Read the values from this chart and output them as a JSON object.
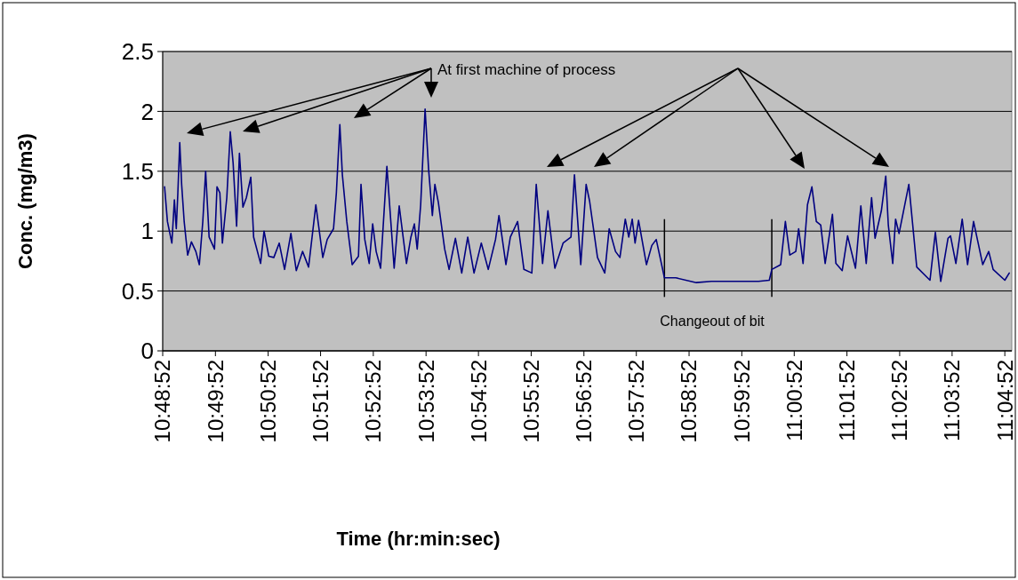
{
  "chart_data": {
    "type": "line",
    "xlabel": "Time (hr:min:sec)",
    "ylabel": "Conc. (mg/m3)",
    "xlim": [
      10.8144,
      11.0833
    ],
    "ylim": [
      0,
      2.5
    ],
    "xticks": [
      {
        "value": 10.8144,
        "label": "10:48:52"
      },
      {
        "value": 10.8311,
        "label": "10:49:52"
      },
      {
        "value": 10.8478,
        "label": "10:50:52"
      },
      {
        "value": 10.8644,
        "label": "10:51:52"
      },
      {
        "value": 10.8811,
        "label": "10:52:52"
      },
      {
        "value": 10.8978,
        "label": "10:53:52"
      },
      {
        "value": 10.9144,
        "label": "10:54:52"
      },
      {
        "value": 10.9311,
        "label": "10:55:52"
      },
      {
        "value": 10.9478,
        "label": "10:56:52"
      },
      {
        "value": 10.9644,
        "label": "10:57:52"
      },
      {
        "value": 10.9811,
        "label": "10:58:52"
      },
      {
        "value": 10.9978,
        "label": "10:59:52"
      },
      {
        "value": 11.0144,
        "label": "11:00:52"
      },
      {
        "value": 11.0311,
        "label": "11:01:52"
      },
      {
        "value": 11.0478,
        "label": "11:02:52"
      },
      {
        "value": 11.0644,
        "label": "11:03:52"
      },
      {
        "value": 11.0811,
        "label": "11:04:52"
      }
    ],
    "yticks": [
      0,
      0.5,
      1,
      1.5,
      2,
      2.5
    ],
    "grid": "y",
    "marker": "none",
    "line_style": "solid",
    "series": [
      {
        "color": "#000080",
        "x": [
          10.815,
          10.8159,
          10.8173,
          10.8181,
          10.8187,
          10.8192,
          10.8198,
          10.8204,
          10.8212,
          10.8223,
          10.8235,
          10.8249,
          10.826,
          10.8271,
          10.828,
          10.8291,
          10.8308,
          10.8316,
          10.8325,
          10.8333,
          10.8347,
          10.8358,
          10.8367,
          10.8378,
          10.8387,
          10.8398,
          10.8409,
          10.8423,
          10.8432,
          10.8454,
          10.8465,
          10.848,
          10.8496,
          10.8513,
          10.853,
          10.855,
          10.8567,
          10.8587,
          10.8606,
          10.8629,
          10.8651,
          10.8665,
          10.8685,
          10.8694,
          10.8705,
          10.8713,
          10.8727,
          10.8744,
          10.8764,
          10.8772,
          10.8784,
          10.8798,
          10.8809,
          10.882,
          10.8834,
          10.8854,
          10.8877,
          10.8893,
          10.8916,
          10.893,
          10.8941,
          10.895,
          10.8961,
          10.8975,
          10.8986,
          10.8998,
          10.9006,
          10.9017,
          10.9037,
          10.9051,
          10.9071,
          10.9091,
          10.911,
          10.913,
          10.9153,
          10.9175,
          10.9198,
          10.9209,
          10.9231,
          10.9245,
          10.9268,
          10.9288,
          10.9313,
          10.9327,
          10.9347,
          10.9364,
          10.9386,
          10.9412,
          10.9437,
          10.9448,
          10.9468,
          10.9485,
          10.9496,
          10.9521,
          10.9544,
          10.9558,
          10.9578,
          10.9592,
          10.9609,
          10.962,
          10.9631,
          10.964,
          10.9651,
          10.9676,
          10.9693,
          10.9707,
          10.9733,
          10.9769,
          10.9834,
          10.9882,
          10.9966,
          11.0031,
          11.0065,
          11.0073,
          11.0101,
          11.0116,
          11.013,
          11.0149,
          11.0158,
          11.0172,
          11.0186,
          11.02,
          11.0214,
          11.0228,
          11.0242,
          11.0265,
          11.0276,
          11.0296,
          11.0313,
          11.0338,
          11.0355,
          11.0372,
          11.0389,
          11.04,
          11.042,
          11.0434,
          11.0442,
          11.0456,
          11.0465,
          11.0476,
          11.0507,
          11.0532,
          11.0574,
          11.0591,
          11.0608,
          11.0631,
          11.0639,
          11.0656,
          11.0676,
          11.0693,
          11.0712,
          11.0741,
          11.076,
          11.0774,
          11.0811,
          11.0825
        ],
        "values": [
          1.37,
          1.08,
          0.9,
          1.26,
          1.02,
          1.32,
          1.74,
          1.39,
          1.08,
          0.8,
          0.91,
          0.83,
          0.72,
          1.08,
          1.5,
          0.95,
          0.85,
          1.37,
          1.32,
          0.9,
          1.28,
          1.83,
          1.57,
          1.04,
          1.65,
          1.2,
          1.28,
          1.45,
          0.95,
          0.73,
          1.0,
          0.79,
          0.78,
          0.9,
          0.68,
          0.98,
          0.67,
          0.83,
          0.7,
          1.22,
          0.78,
          0.93,
          1.02,
          1.32,
          1.89,
          1.47,
          1.08,
          0.72,
          0.79,
          1.39,
          0.93,
          0.73,
          1.06,
          0.83,
          0.69,
          1.54,
          0.69,
          1.21,
          0.73,
          0.95,
          1.06,
          0.85,
          1.22,
          2.02,
          1.52,
          1.13,
          1.39,
          1.24,
          0.85,
          0.68,
          0.94,
          0.65,
          0.95,
          0.65,
          0.9,
          0.68,
          0.93,
          1.13,
          0.72,
          0.95,
          1.08,
          0.68,
          0.65,
          1.39,
          0.73,
          1.17,
          0.69,
          0.9,
          0.95,
          1.47,
          0.72,
          1.39,
          1.25,
          0.78,
          0.65,
          1.02,
          0.83,
          0.78,
          1.1,
          0.95,
          1.1,
          0.9,
          1.09,
          0.72,
          0.88,
          0.93,
          0.61,
          0.61,
          0.57,
          0.58,
          0.58,
          0.58,
          0.59,
          0.68,
          0.72,
          1.08,
          0.8,
          0.83,
          1.02,
          0.73,
          1.22,
          1.37,
          1.08,
          1.05,
          0.73,
          1.14,
          0.73,
          0.67,
          0.96,
          0.69,
          1.21,
          0.73,
          1.28,
          0.94,
          1.17,
          1.46,
          1.05,
          0.73,
          1.1,
          0.98,
          1.39,
          0.7,
          0.59,
          0.99,
          0.58,
          0.94,
          0.96,
          0.73,
          1.1,
          0.72,
          1.08,
          0.72,
          0.83,
          0.68,
          0.59,
          0.65
        ]
      }
    ],
    "ref_lines": [
      {
        "axis": "x",
        "value": 10.9733
      },
      {
        "axis": "x",
        "value": 11.0073
      }
    ],
    "annotations": [
      "At first machine of process",
      "Changeout of bit"
    ]
  }
}
